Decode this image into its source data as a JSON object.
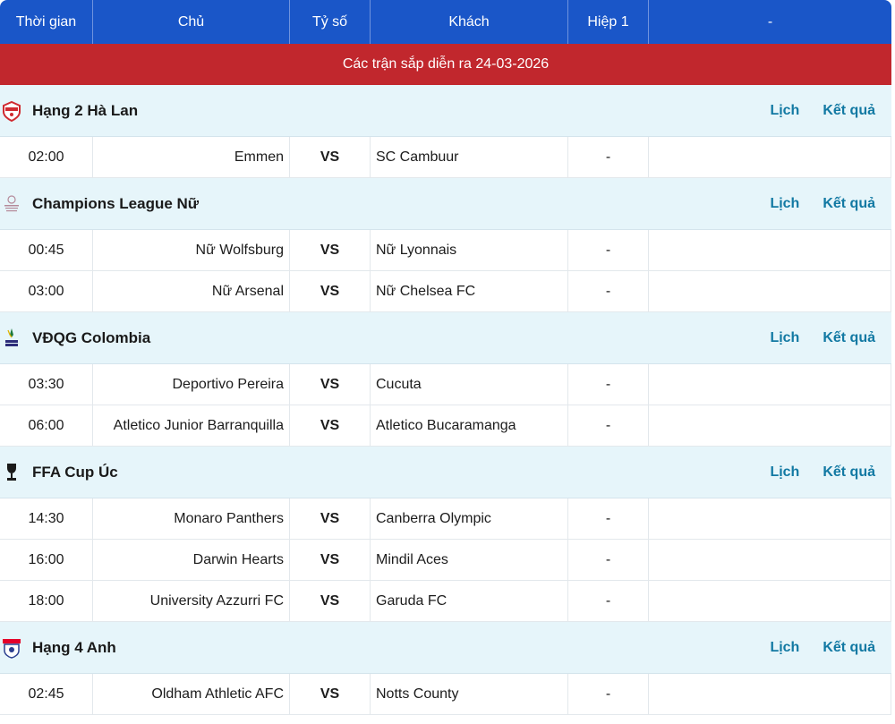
{
  "header": {
    "time": "Thời gian",
    "home": "Chủ",
    "score": "Tỷ số",
    "away": "Khách",
    "half": "Hiệp 1",
    "extra": "-"
  },
  "banner": "Các trận sắp diễn ra 24-03-2026",
  "links": {
    "schedule": "Lịch",
    "results": "Kết quả"
  },
  "leagues": [
    {
      "name": "Hạng 2 Hà Lan",
      "icon": "keuken-kampioen-divisie-logo",
      "matches": [
        {
          "time": "02:00",
          "home": "Emmen",
          "score": "VS",
          "away": "SC Cambuur",
          "half": "-"
        }
      ]
    },
    {
      "name": "Champions League Nữ",
      "icon": "womens-champions-league-logo",
      "matches": [
        {
          "time": "00:45",
          "home": "Nữ Wolfsburg",
          "score": "VS",
          "away": "Nữ Lyonnais",
          "half": "-"
        },
        {
          "time": "03:00",
          "home": "Nữ Arsenal",
          "score": "VS",
          "away": "Nữ Chelsea FC",
          "half": "-"
        }
      ]
    },
    {
      "name": "VĐQG Colombia",
      "icon": "betplay-dimayor-logo",
      "matches": [
        {
          "time": "03:30",
          "home": "Deportivo Pereira",
          "score": "VS",
          "away": "Cucuta",
          "half": "-"
        },
        {
          "time": "06:00",
          "home": "Atletico Junior Barranquilla",
          "score": "VS",
          "away": "Atletico Bucaramanga",
          "half": "-"
        }
      ]
    },
    {
      "name": "FFA Cup Úc",
      "icon": "ffa-cup-trophy-logo",
      "matches": [
        {
          "time": "14:30",
          "home": "Monaro Panthers",
          "score": "VS",
          "away": "Canberra Olympic",
          "half": "-"
        },
        {
          "time": "16:00",
          "home": "Darwin Hearts",
          "score": "VS",
          "away": "Mindil Aces",
          "half": "-"
        },
        {
          "time": "18:00",
          "home": "University Azzurri FC",
          "score": "VS",
          "away": "Garuda FC",
          "half": "-"
        }
      ]
    },
    {
      "name": "Hạng 4 Anh",
      "icon": "sky-bet-league-two-logo",
      "matches": [
        {
          "time": "02:45",
          "home": "Oldham Athletic AFC",
          "score": "VS",
          "away": "Notts County",
          "half": "-"
        }
      ]
    }
  ],
  "colors": {
    "header": "#1a56c8",
    "banner": "#c1272d",
    "league_row": "#e6f5fa",
    "link": "#1279a3"
  }
}
